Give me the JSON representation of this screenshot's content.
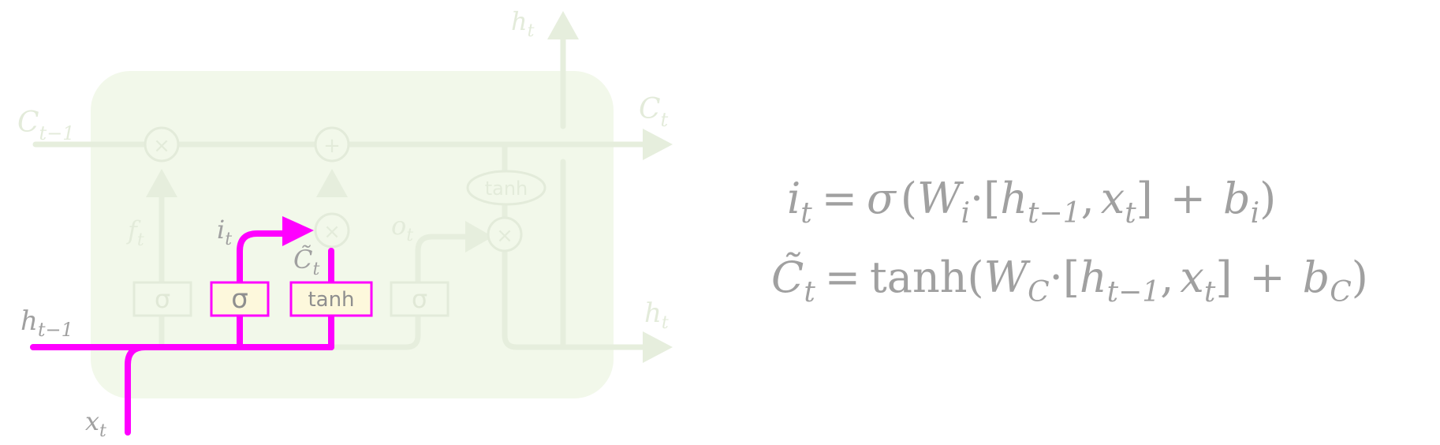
{
  "diagram": {
    "labels": {
      "c_prev_base": "C",
      "c_prev_sub": "t−1",
      "c_out_base": "C",
      "c_out_sub": "t",
      "h_top_base": "h",
      "h_top_sub": "t",
      "h_right_base": "h",
      "h_right_sub": "t",
      "h_prev_base": "h",
      "h_prev_sub": "t−1",
      "x_base": "x",
      "x_sub": "t",
      "f_base": "f",
      "f_sub": "t",
      "i_base": "i",
      "i_sub": "t",
      "ctilde_base": "C̃",
      "ctilde_sub": "t",
      "o_base": "o",
      "o_sub": "t"
    },
    "gates": {
      "forget": "σ",
      "input": "σ",
      "candidate": "tanh",
      "output": "σ",
      "cell_tanh": "tanh"
    },
    "ops": {
      "mult": "×",
      "add": "+"
    },
    "colors": {
      "cell_bg": "#f2f8ea",
      "faded": "#e8efe0",
      "highlight": "#ff00ff",
      "gate_highlight_fill": "#fdf8dc",
      "label_gray": "#a0a0a0"
    }
  },
  "equations": {
    "eq1": {
      "lhs_base": "i",
      "lhs_sub": "t",
      "eq": "=",
      "sigma": "σ",
      "open": "(",
      "w_base": "W",
      "w_sub": "i",
      "dot": "·",
      "bracket_open": "[",
      "h_base": "h",
      "h_sub": "t−1",
      "comma": ",",
      "x_base": "x",
      "x_sub": "t",
      "bracket_close": "]",
      "plus": "+",
      "b_base": "b",
      "b_sub": "i",
      "close": ")"
    },
    "eq2": {
      "lhs_base": "C̃",
      "lhs_sub": "t",
      "eq": "=",
      "tanh": "tanh",
      "open": "(",
      "w_base": "W",
      "w_sub": "C",
      "dot": "·",
      "bracket_open": "[",
      "h_base": "h",
      "h_sub": "t−1",
      "comma": ",",
      "x_base": "x",
      "x_sub": "t",
      "bracket_close": "]",
      "plus": "+",
      "b_base": "b",
      "b_sub": "C",
      "close": ")"
    }
  }
}
